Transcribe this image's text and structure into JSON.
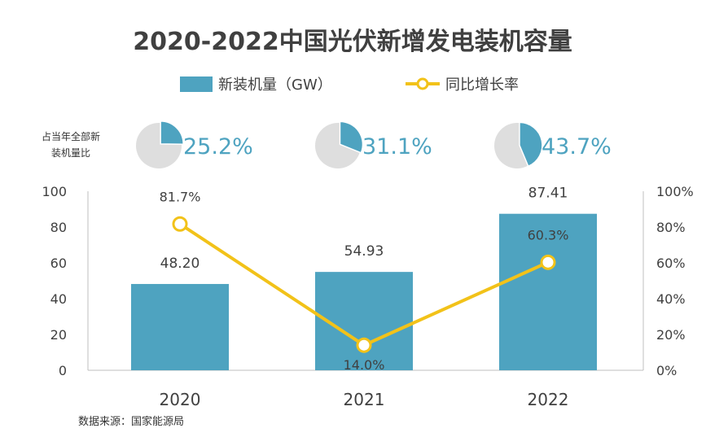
{
  "chart_data": {
    "type": "bar",
    "title": "2020-2022中国光伏新增发电装机容量",
    "categories": [
      "2020",
      "2021",
      "2022"
    ],
    "series": [
      {
        "name": "新装机量（GW）",
        "type": "bar",
        "axis": "left",
        "color": "#4ea3c0",
        "values": [
          48.2,
          54.93,
          87.41
        ],
        "labels": [
          "48.20",
          "54.93",
          "87.41"
        ]
      },
      {
        "name": "同比增长率",
        "type": "line",
        "axis": "right",
        "color": "#f2c219",
        "values": [
          81.7,
          14.0,
          60.3
        ],
        "labels": [
          "81.7%",
          "14.0%",
          "60.3%"
        ]
      }
    ],
    "y_left": {
      "min": 0,
      "max": 100,
      "ticks": [
        "0",
        "20",
        "40",
        "60",
        "80",
        "100"
      ]
    },
    "y_right": {
      "min": 0,
      "max": 100,
      "ticks": [
        "0%",
        "20%",
        "40%",
        "60%",
        "80%",
        "100%"
      ]
    },
    "share": {
      "label_line1": "占当年全部新",
      "label_line2": "装机量比",
      "values": [
        25.2,
        31.1,
        43.7
      ],
      "labels": [
        "25.2%",
        "31.1%",
        "43.7%"
      ],
      "color": "#4ea3c0",
      "rest_color": "#dedede"
    },
    "source": "数据来源：国家能源局"
  }
}
